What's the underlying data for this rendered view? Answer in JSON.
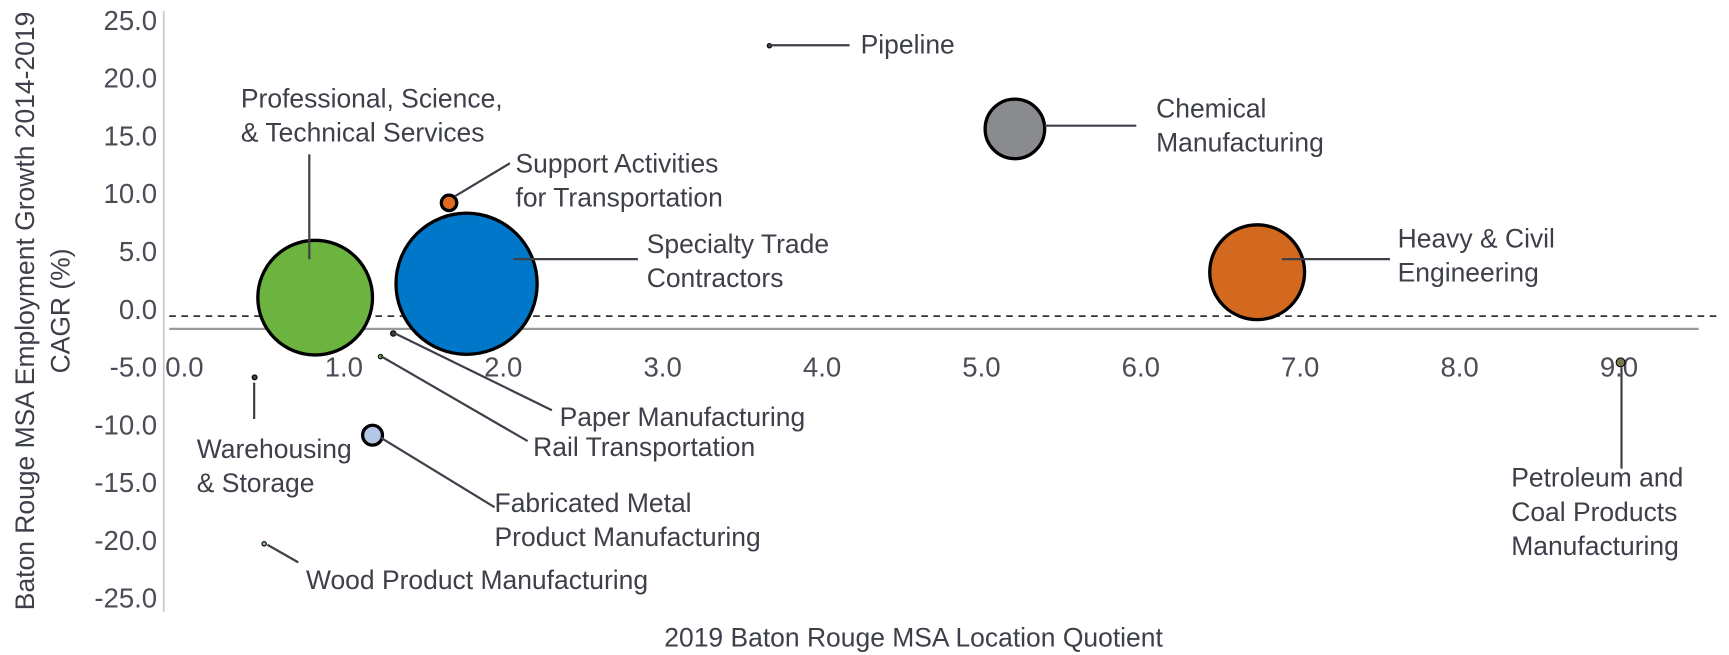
{
  "chart_data": {
    "type": "bubble",
    "xlabel": "2019 Baton Rouge MSA Location Quotient",
    "ylabel": [
      "Baton Rouge MSA Employment Growth 2014-2019",
      "CAGR (%)"
    ],
    "xlim": [
      -0.13,
      9.5
    ],
    "ylim": [
      -26,
      26
    ],
    "x_axis_at": -1.5,
    "reference_y": -0.4,
    "xticks": [
      {
        "value": 0,
        "label": "0.0"
      },
      {
        "value": 1,
        "label": "1.0"
      },
      {
        "value": 2,
        "label": "2.0"
      },
      {
        "value": 3,
        "label": "3.0"
      },
      {
        "value": 4,
        "label": "4.0"
      },
      {
        "value": 5,
        "label": "5.0"
      },
      {
        "value": 6,
        "label": "6.0"
      },
      {
        "value": 7,
        "label": "7.0"
      },
      {
        "value": 8,
        "label": "8.0"
      },
      {
        "value": 9,
        "label": "9.0"
      }
    ],
    "yticks": [
      {
        "value": 25,
        "label": "25.0"
      },
      {
        "value": 20,
        "label": "20.0"
      },
      {
        "value": 15,
        "label": "15.0"
      },
      {
        "value": 10,
        "label": "10.0"
      },
      {
        "value": 5,
        "label": "5.0"
      },
      {
        "value": 0,
        "label": "0.0"
      },
      {
        "value": -5,
        "label": "-5.0"
      },
      {
        "value": -10,
        "label": "-10.0"
      },
      {
        "value": -15,
        "label": "-15.0"
      },
      {
        "value": -20,
        "label": "-20.0"
      },
      {
        "value": -25,
        "label": "-25.0"
      }
    ],
    "points": [
      {
        "label": [
          "Pipeline"
        ],
        "x": 3.67,
        "y": 23.0,
        "size": 4,
        "color": "#3d4049"
      },
      {
        "label": [
          "Chemical",
          "Manufacturing"
        ],
        "x": 5.21,
        "y": 15.8,
        "size": 729,
        "color": "#898b8e"
      },
      {
        "label": [
          "Professional, Science,",
          "& Technical Services"
        ],
        "x": 0.82,
        "y": 1.2,
        "size": 2704,
        "color": "#6db33f"
      },
      {
        "label": [
          "Support Activities",
          "for Transportation"
        ],
        "x": 1.66,
        "y": 9.4,
        "size": 49,
        "color": "#e06c1f"
      },
      {
        "label": [
          "Specialty Trade",
          "Contractors"
        ],
        "x": 1.77,
        "y": 2.4,
        "size": 4096,
        "color": "#0077c8"
      },
      {
        "label": [
          "Heavy & Civil",
          "Engineering"
        ],
        "x": 6.73,
        "y": 3.4,
        "size": 1849,
        "color": "#d2691e"
      },
      {
        "label": [
          "Paper Manufacturing"
        ],
        "x": 1.31,
        "y": -1.9,
        "size": 6,
        "color": "#3d4049"
      },
      {
        "label": [
          "Rail Transportation"
        ],
        "x": 1.23,
        "y": -3.9,
        "size": 3,
        "color": "#6db33f"
      },
      {
        "label": [
          "Warehousing",
          "& Storage"
        ],
        "x": 0.44,
        "y": -5.7,
        "size": 5,
        "color": "#3d4049"
      },
      {
        "label": [
          "Fabricated Metal",
          "Product Manufacturing"
        ],
        "x": 1.18,
        "y": -10.7,
        "size": 81,
        "color": "#b4c7e7"
      },
      {
        "label": [
          "Wood Product Manufacturing"
        ],
        "x": 0.5,
        "y": -20.1,
        "size": 3,
        "color": "#8fbf8f"
      },
      {
        "label": [
          "Petroleum and",
          "Coal Products",
          "Manufacturing"
        ],
        "x": 9.01,
        "y": -4.4,
        "size": 16,
        "color": "#7a7a4a"
      }
    ]
  }
}
